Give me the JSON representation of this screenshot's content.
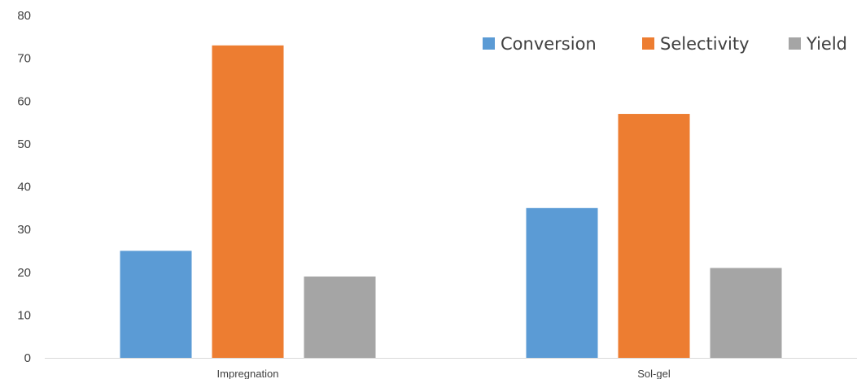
{
  "chart_data": {
    "type": "bar",
    "categories": [
      "Impregnation",
      "Sol-gel"
    ],
    "series": [
      {
        "name": "Conversion",
        "values": [
          25,
          35
        ],
        "color": "#5B9BD5"
      },
      {
        "name": "Selectivity",
        "values": [
          73,
          57
        ],
        "color": "#ED7D31"
      },
      {
        "name": "Yield",
        "values": [
          19,
          21
        ],
        "color": "#A5A5A5"
      }
    ],
    "ylim": [
      0,
      80
    ],
    "yticks": [
      0,
      10,
      20,
      30,
      40,
      50,
      60,
      70,
      80
    ],
    "grid": false,
    "legend_position": "top-right",
    "axis_color": "#D9D9D9"
  }
}
